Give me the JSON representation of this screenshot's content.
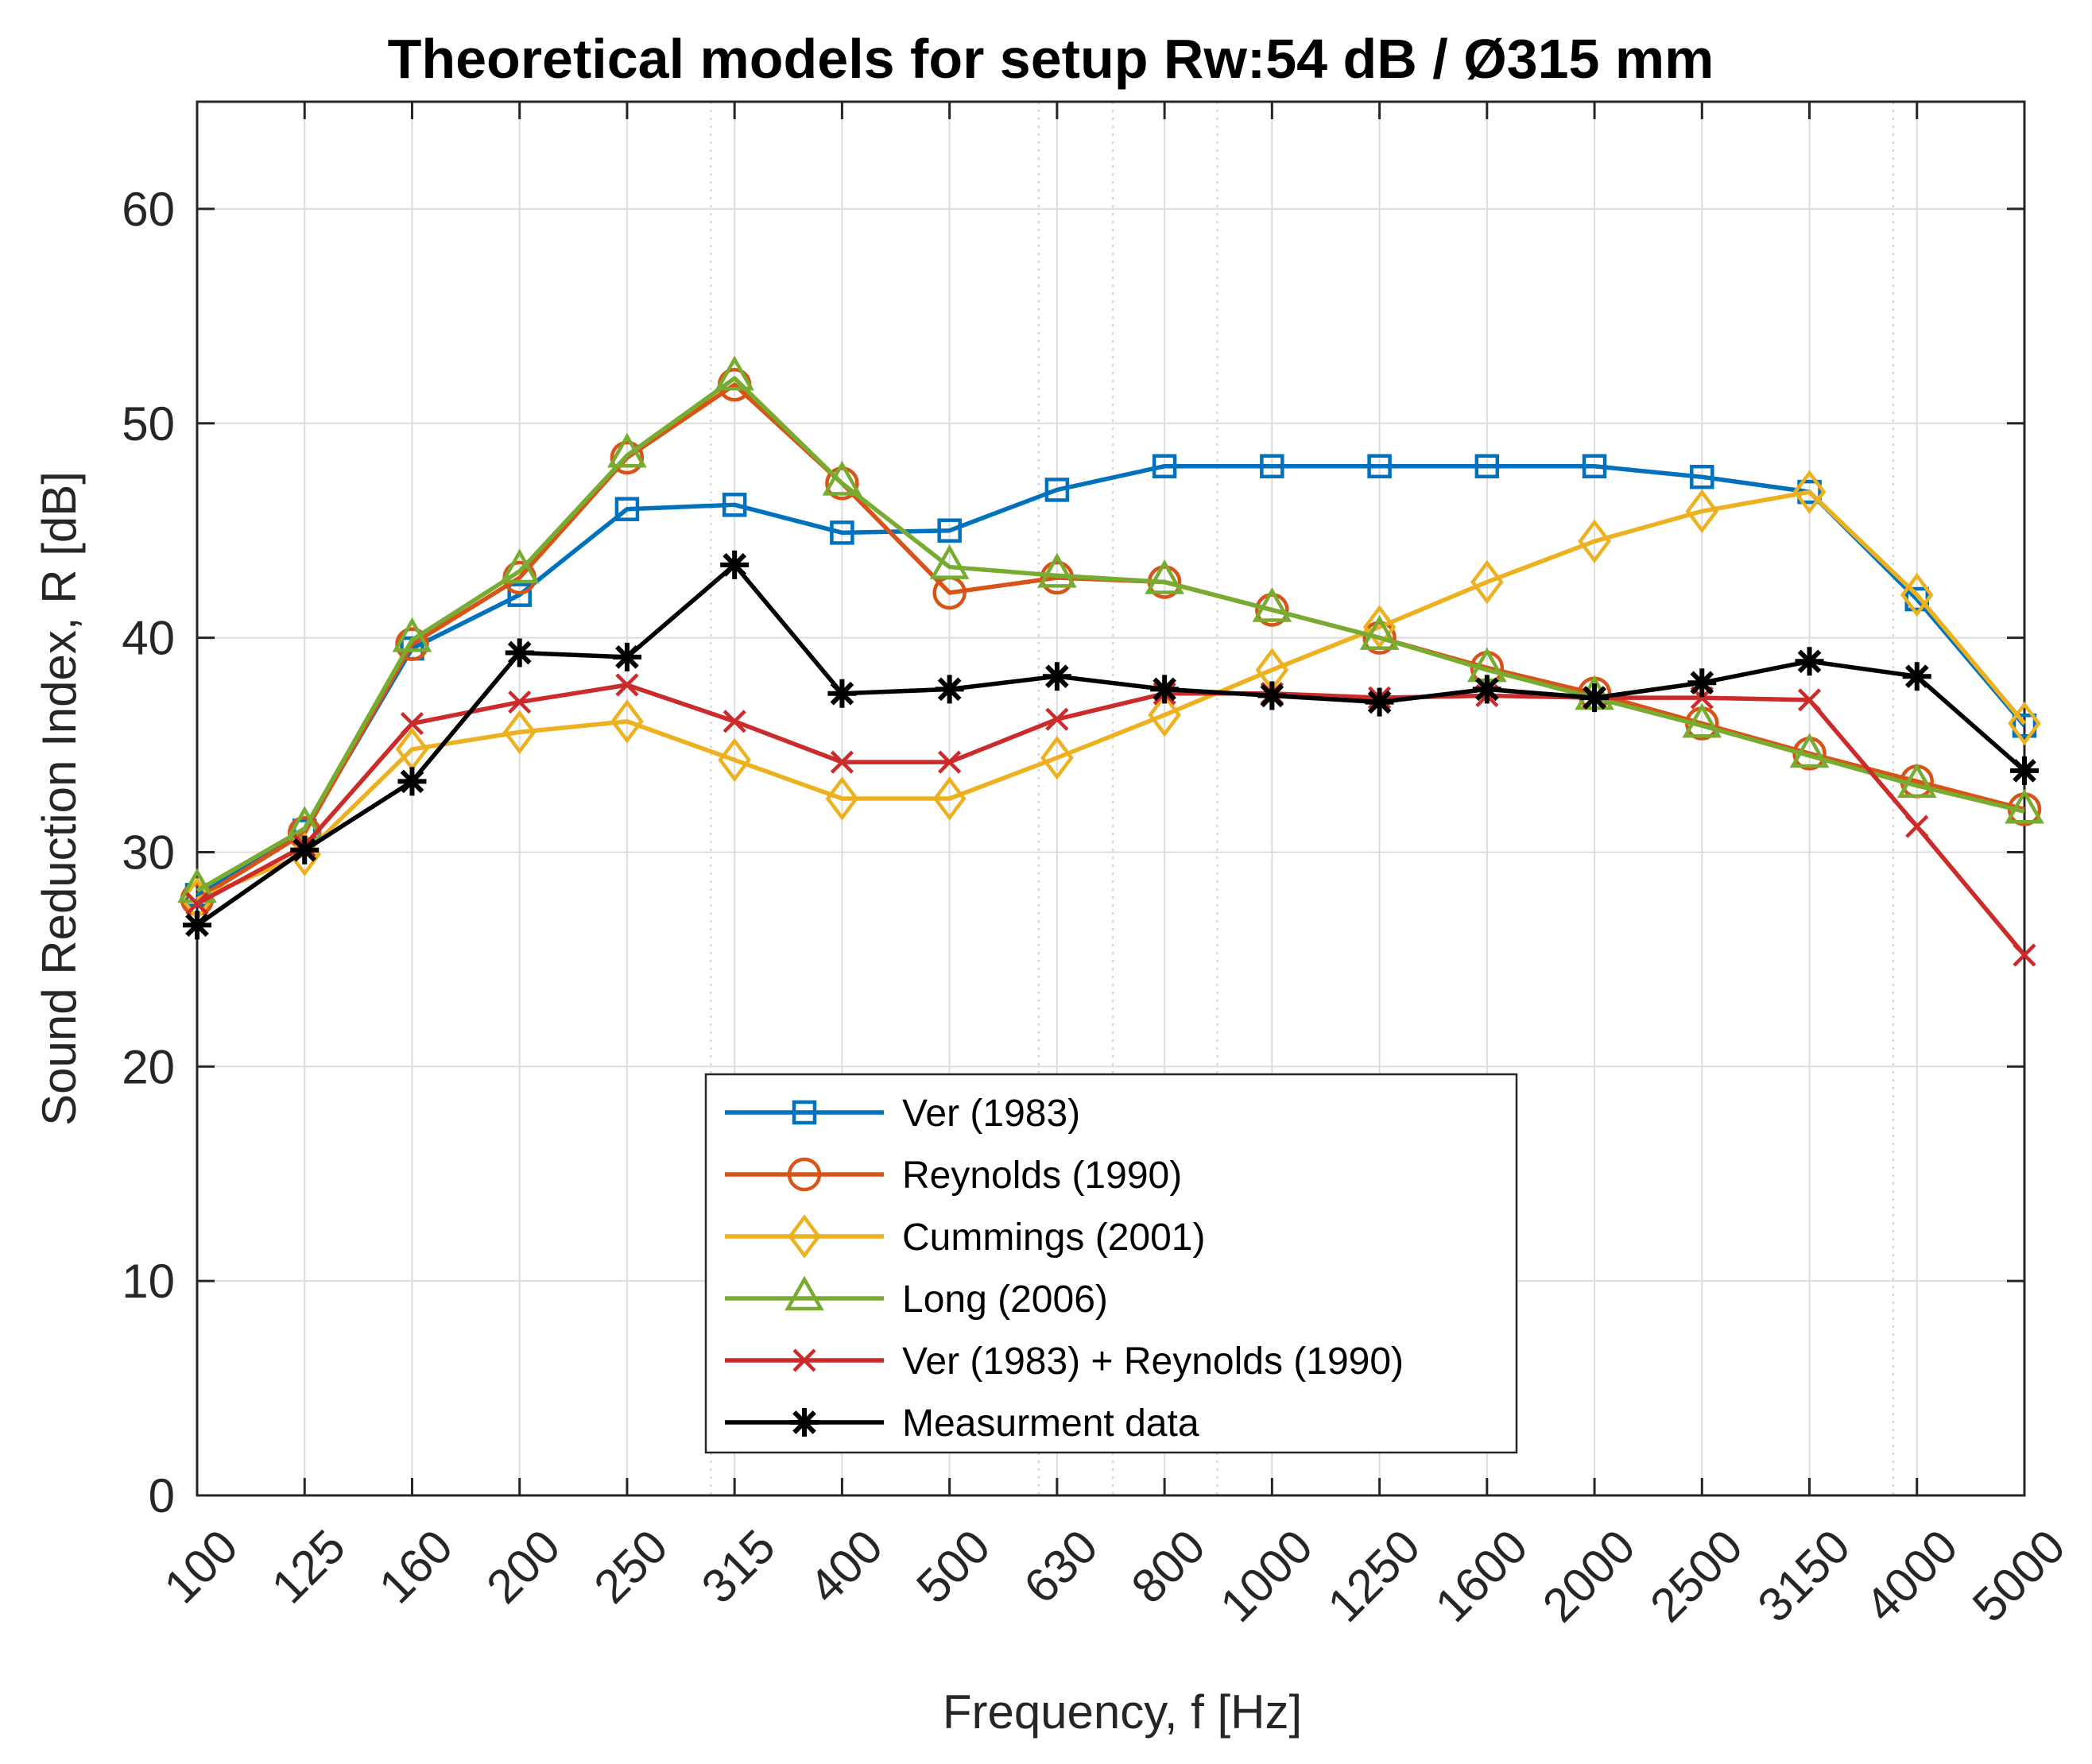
{
  "chart_data": {
    "type": "line",
    "title": "Theoretical models for setup Rw:54 dB / Ø315 mm",
    "xlabel": "Frequency, f [Hz]",
    "ylabel": "Sound Reduction Index, R [dB]",
    "categories": [
      "100",
      "125",
      "160",
      "200",
      "250",
      "315",
      "400",
      "500",
      "630",
      "800",
      "1000",
      "1250",
      "1600",
      "2000",
      "2500",
      "3150",
      "4000",
      "5000"
    ],
    "ylim": [
      0,
      65
    ],
    "yticks": [
      0,
      10,
      20,
      30,
      40,
      50,
      60
    ],
    "grid": true,
    "legend_position": "bottom-center",
    "series": [
      {
        "name": "Ver (1983)",
        "color": "#0072BD",
        "marker": "square",
        "values": [
          28.0,
          31.0,
          39.5,
          42.0,
          46.0,
          46.2,
          44.9,
          45.0,
          46.9,
          48.0,
          48.0,
          48.0,
          48.0,
          48.0,
          47.5,
          46.8,
          41.8,
          35.9
        ]
      },
      {
        "name": "Reynolds (1990)",
        "color": "#D95319",
        "marker": "circle",
        "values": [
          27.8,
          30.9,
          39.7,
          42.8,
          48.4,
          51.8,
          47.2,
          42.1,
          42.8,
          42.6,
          41.3,
          40.0,
          38.6,
          37.4,
          36.0,
          34.6,
          33.3,
          32.0
        ]
      },
      {
        "name": "Cummings (2001)",
        "color": "#EDB120",
        "marker": "diamond",
        "values": [
          27.8,
          29.9,
          34.8,
          35.6,
          36.1,
          34.3,
          32.5,
          32.5,
          34.4,
          36.4,
          38.5,
          40.5,
          42.6,
          44.5,
          45.9,
          46.8,
          42.0,
          36.0
        ]
      },
      {
        "name": "Long (2006)",
        "color": "#77AC30",
        "marker": "triangle",
        "values": [
          28.2,
          31.1,
          39.9,
          43.1,
          48.5,
          52.1,
          47.2,
          43.3,
          42.9,
          42.6,
          41.3,
          40.0,
          38.5,
          37.2,
          35.9,
          34.5,
          33.1,
          31.9
        ]
      },
      {
        "name": "Ver (1983) + Reynolds (1990)",
        "color": "#CC2B2B",
        "marker": "x",
        "values": [
          27.6,
          30.3,
          36.0,
          37.0,
          37.8,
          36.1,
          34.2,
          34.2,
          36.2,
          37.4,
          37.4,
          37.2,
          37.3,
          37.2,
          37.2,
          37.1,
          31.2,
          25.2
        ]
      },
      {
        "name": "Measurment data",
        "color": "#000000",
        "marker": "asterisk",
        "values": [
          26.6,
          30.1,
          33.3,
          39.3,
          39.1,
          43.4,
          37.4,
          37.6,
          38.2,
          37.6,
          37.3,
          37.0,
          37.6,
          37.2,
          37.9,
          38.9,
          38.2,
          33.8
        ]
      }
    ]
  }
}
